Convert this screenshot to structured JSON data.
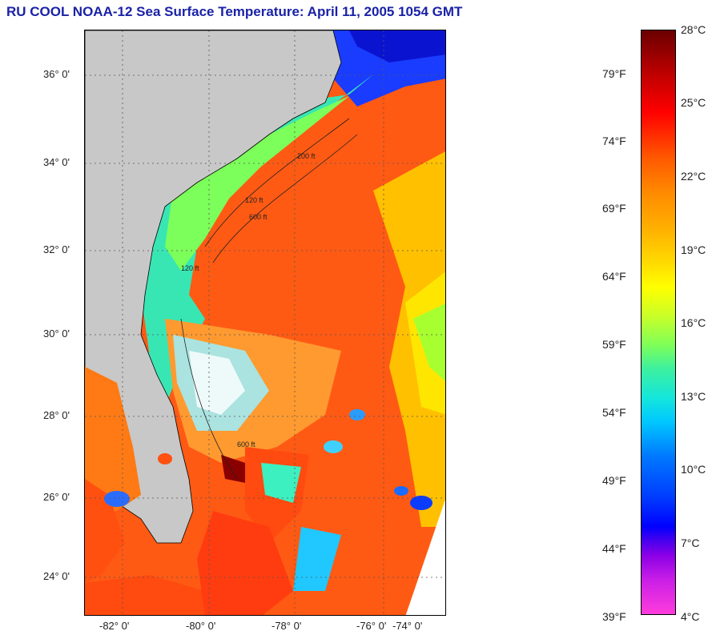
{
  "title": "RU COOL  NOAA-12  Sea Surface Temperature:  April 11, 2005 1054 GMT",
  "map": {
    "lat_labels": [
      "36° 0'",
      "34° 0'",
      "32° 0'",
      "30° 0'",
      "28° 0'",
      "26° 0'",
      "24° 0'"
    ],
    "lon_labels": [
      "-82° 0'",
      "-80° 0'",
      "-78° 0'",
      "-76° 0'",
      "-74° 0'"
    ],
    "contour_labels": [
      "120 ft",
      "600 ft",
      "200 ft",
      "600 ft",
      "120 ft"
    ],
    "colors": {
      "land": "#c8c8c8",
      "gulf_stream": "#ff4a10",
      "shelf": "#38e6b4",
      "cold": "#0a2aff"
    }
  },
  "colorbar": {
    "fahrenheit": [
      "79°F",
      "74°F",
      "69°F",
      "64°F",
      "59°F",
      "54°F",
      "49°F",
      "44°F",
      "39°F"
    ],
    "celsius": [
      "28°C",
      "25°C",
      "22°C",
      "19°C",
      "16°C",
      "13°C",
      "10°C",
      "7°C",
      "4°C"
    ]
  }
}
